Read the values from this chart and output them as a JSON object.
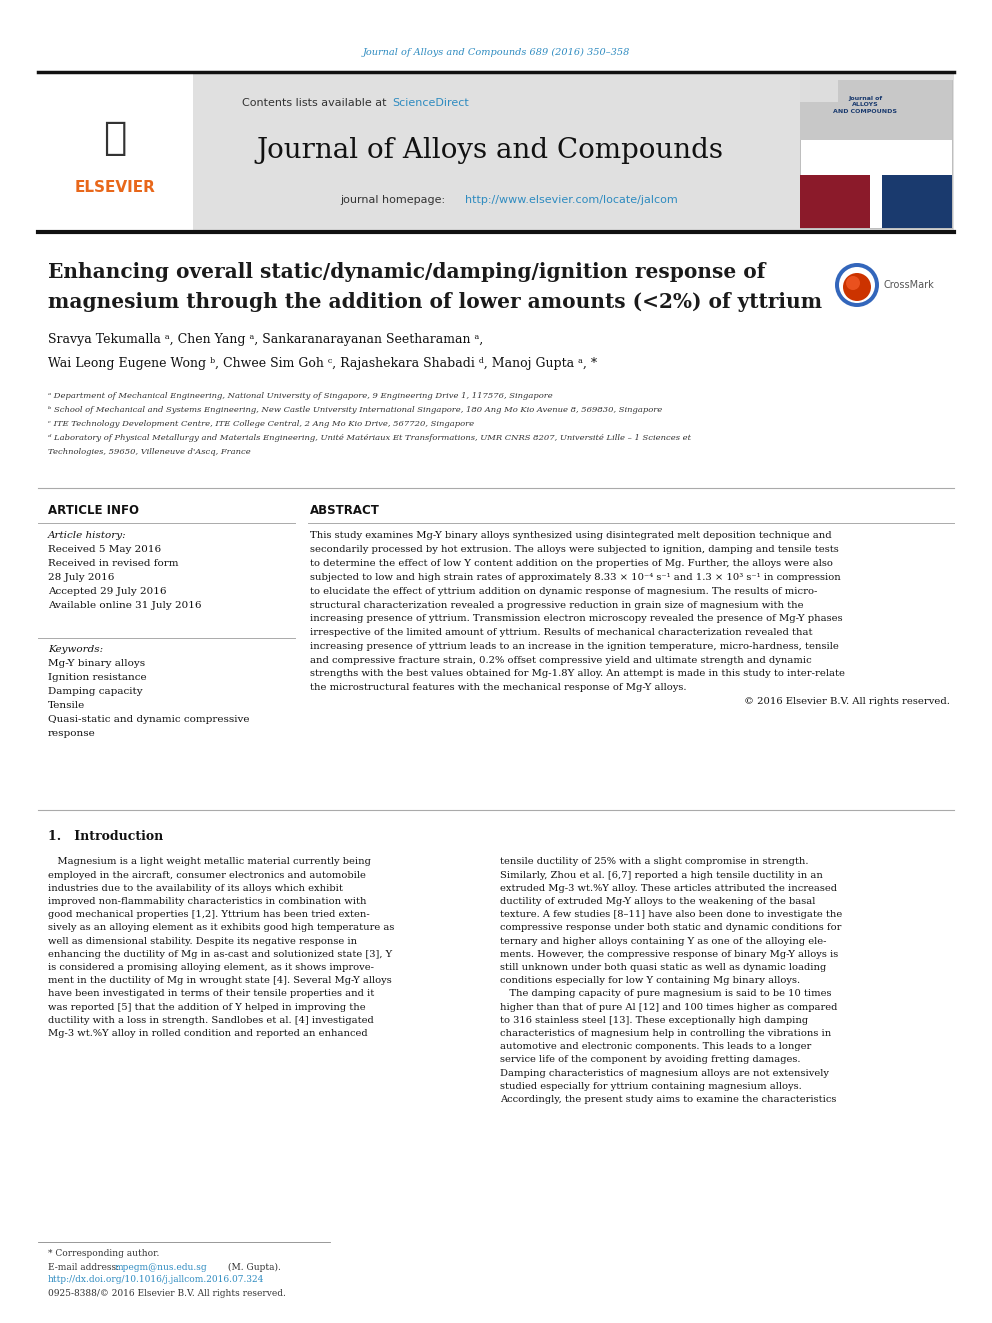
{
  "page_width": 9.92,
  "page_height": 13.23,
  "background_color": "#ffffff",
  "top_citation": "Journal of Alloys and Compounds 689 (2016) 350–358",
  "top_citation_color": "#2e8bc0",
  "header_bg_color": "#e0e0e0",
  "elsevier_color": "#e8671a",
  "sciencedirect_color": "#2e8bc0",
  "homepage_url_color": "#2e8bc0",
  "journal_name": "Journal of Alloys and Compounds",
  "homepage_prefix": "journal homepage: ",
  "homepage_url": "http://www.elsevier.com/locate/jalcom",
  "paper_title_line1": "Enhancing overall static/dynamic/damping/ignition response of",
  "paper_title_line2": "magnesium through the addition of lower amounts (<2%) of yttrium",
  "paper_title_color": "#1a1a1a",
  "authors_line1": "Sravya Tekumalla ᵃ, Chen Yang ᵃ, Sankaranarayanan Seetharaman ᵃ,",
  "authors_line2": "Wai Leong Eugene Wong ᵇ, Chwee Sim Goh ᶜ, Rajashekara Shabadi ᵈ, Manoj Gupta ᵃ, *",
  "affil_a": "ᵃ Department of Mechanical Engineering, National University of Singapore, 9 Engineering Drive 1, 117576, Singapore",
  "affil_b": "ᵇ School of Mechanical and Systems Engineering, New Castle University International Singapore, 180 Ang Mo Kio Avenue 8, 569830, Singapore",
  "affil_c": "ᶜ ITE Technology Development Centre, ITE College Central, 2 Ang Mo Kio Drive, 567720, Singapore",
  "affil_d1": "ᵈ Laboratory of Physical Metallurgy and Materials Engineering, Unité Matériaux Et Transformations, UMR CNRS 8207, Université Lille – 1 Sciences et",
  "affil_d2": "Technologies, 59650, Villeneuve d'Ascq, France",
  "article_info_title": "ARTICLE INFO",
  "article_history_title": "Article history:",
  "received_1": "Received 5 May 2016",
  "received_2": "Received in revised form",
  "received_3": "28 July 2016",
  "accepted": "Accepted 29 July 2016",
  "available": "Available online 31 July 2016",
  "keywords_title": "Keywords:",
  "keyword1": "Mg-Y binary alloys",
  "keyword2": "Ignition resistance",
  "keyword3": "Damping capacity",
  "keyword4": "Tensile",
  "keyword5": "Quasi-static and dynamic compressive",
  "keyword6": "response",
  "abstract_title": "ABSTRACT",
  "abstract_lines": [
    "This study examines Mg-Y binary alloys synthesized using disintegrated melt deposition technique and",
    "secondarily processed by hot extrusion. The alloys were subjected to ignition, damping and tensile tests",
    "to determine the effect of low Y content addition on the properties of Mg. Further, the alloys were also",
    "subjected to low and high strain rates of approximately 8.33 × 10⁻⁴ s⁻¹ and 1.3 × 10³ s⁻¹ in compression",
    "to elucidate the effect of yttrium addition on dynamic response of magnesium. The results of micro-",
    "structural characterization revealed a progressive reduction in grain size of magnesium with the",
    "increasing presence of yttrium. Transmission electron microscopy revealed the presence of Mg-Y phases",
    "irrespective of the limited amount of yttrium. Results of mechanical characterization revealed that",
    "increasing presence of yttrium leads to an increase in the ignition temperature, micro-hardness, tensile",
    "and compressive fracture strain, 0.2% offset compressive yield and ultimate strength and dynamic",
    "strengths with the best values obtained for Mg-1.8Y alloy. An attempt is made in this study to inter-relate",
    "the microstructural features with the mechanical response of Mg-Y alloys."
  ],
  "copyright": "© 2016 Elsevier B.V. All rights reserved.",
  "section1_title": "1.   Introduction",
  "intro_col1_lines": [
    "   Magnesium is a light weight metallic material currently being",
    "employed in the aircraft, consumer electronics and automobile",
    "industries due to the availability of its alloys which exhibit",
    "improved non-flammability characteristics in combination with",
    "good mechanical properties [1,2]. Yttrium has been tried exten-",
    "sively as an alloying element as it exhibits good high temperature as",
    "well as dimensional stability. Despite its negative response in",
    "enhancing the ductility of Mg in as-cast and solutionized state [3], Y",
    "is considered a promising alloying element, as it shows improve-",
    "ment in the ductility of Mg in wrought state [4]. Several Mg-Y alloys",
    "have been investigated in terms of their tensile properties and it",
    "was reported [5] that the addition of Y helped in improving the",
    "ductility with a loss in strength. Sandlobes et al. [4] investigated",
    "Mg-3 wt.%Y alloy in rolled condition and reported an enhanced"
  ],
  "intro_col2_lines": [
    "tensile ductility of 25% with a slight compromise in strength.",
    "Similarly, Zhou et al. [6,7] reported a high tensile ductility in an",
    "extruded Mg-3 wt.%Y alloy. These articles attributed the increased",
    "ductility of extruded Mg-Y alloys to the weakening of the basal",
    "texture. A few studies [8–11] have also been done to investigate the",
    "compressive response under both static and dynamic conditions for",
    "ternary and higher alloys containing Y as one of the alloying ele-",
    "ments. However, the compressive response of binary Mg-Y alloys is",
    "still unknown under both quasi static as well as dynamic loading",
    "conditions especially for low Y containing Mg binary alloys.",
    "   The damping capacity of pure magnesium is said to be 10 times",
    "higher than that of pure Al [12] and 100 times higher as compared",
    "to 316 stainless steel [13]. These exceptionally high damping",
    "characteristics of magnesium help in controlling the vibrations in",
    "automotive and electronic components. This leads to a longer",
    "service life of the component by avoiding fretting damages.",
    "Damping characteristics of magnesium alloys are not extensively",
    "studied especially for yttrium containing magnesium alloys.",
    "Accordingly, the present study aims to examine the characteristics"
  ],
  "footnote_corresponding": "* Corresponding author.",
  "footnote_email_prefix": "E-mail address: ",
  "footnote_email": "mpegm@nus.edu.sg",
  "footnote_email_color": "#2e8bc0",
  "footnote_email_suffix": " (M. Gupta).",
  "footnote_doi": "http://dx.doi.org/10.1016/j.jallcom.2016.07.324",
  "footnote_doi_color": "#2e8bc0",
  "footnote_issn": "0925-8388/© 2016 Elsevier B.V. All rights reserved."
}
